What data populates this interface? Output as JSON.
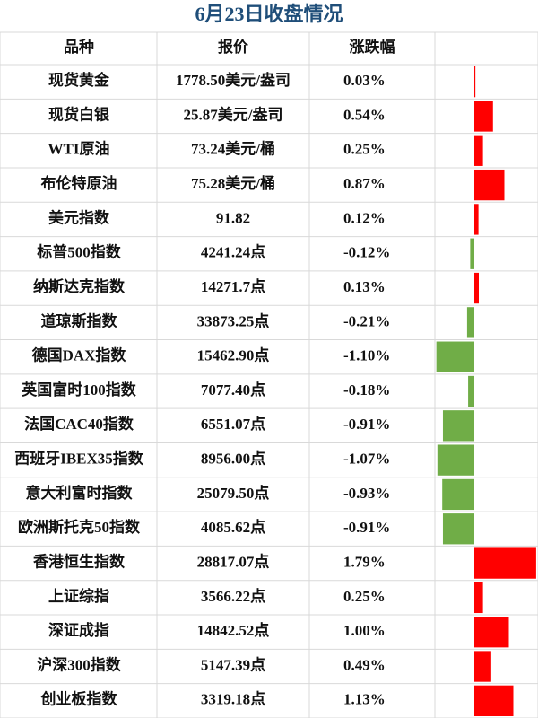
{
  "title": "6月23日收盘情况",
  "table": {
    "header": [
      "品种",
      "报价",
      "涨跌幅"
    ],
    "rows": [
      [
        "现货黄金",
        "1778.50美元/盎司",
        {
          "value": 0.03,
          "label": "0.03%"
        }
      ],
      [
        "现货白银",
        "25.87美元/盎司",
        {
          "value": 0.54,
          "label": "0.54%"
        }
      ],
      [
        "WTI原油",
        "73.24美元/桶",
        {
          "value": 0.25,
          "label": "0.25%"
        }
      ],
      [
        "布伦特原油",
        "75.28美元/桶",
        {
          "value": 0.87,
          "label": "0.87%"
        }
      ],
      [
        "美元指数",
        "91.82",
        {
          "value": 0.12,
          "label": "0.12%"
        }
      ],
      [
        "标普500指数",
        "4241.24点",
        {
          "value": -0.12,
          "label": "-0.12%"
        }
      ],
      [
        "纳斯达克指数",
        "14271.7点",
        {
          "value": 0.13,
          "label": "0.13%"
        }
      ],
      [
        "道琼斯指数",
        "33873.25点",
        {
          "value": -0.21,
          "label": "-0.21%"
        }
      ],
      [
        "德国DAX指数",
        "15462.90点",
        {
          "value": -1.1,
          "label": "-1.10%"
        }
      ],
      [
        "英国富时100指数",
        "7077.40点",
        {
          "value": -0.18,
          "label": "-0.18%"
        }
      ],
      [
        "法国CAC40指数",
        "6551.07点",
        {
          "value": -0.91,
          "label": "-0.91%"
        }
      ],
      [
        "西班牙IBEX35指数",
        "8956.00点",
        {
          "value": -1.07,
          "label": "-1.07%"
        }
      ],
      [
        "意大利富时指数",
        "25079.50点",
        {
          "value": -0.93,
          "label": "-0.93%"
        }
      ],
      [
        "欧洲斯托克50指数",
        "4085.62点",
        {
          "value": -0.91,
          "label": "-0.91%"
        }
      ],
      [
        "香港恒生指数",
        "28817.07点",
        {
          "value": 1.79,
          "label": "1.79%"
        }
      ],
      [
        "上证综指",
        "3566.22点",
        {
          "value": 0.25,
          "label": "0.25%"
        }
      ],
      [
        "深证成指",
        "14842.52点",
        {
          "value": 1.0,
          "label": "1.00%"
        }
      ],
      [
        "沪深300指数",
        "5147.39点",
        {
          "value": 0.49,
          "label": "0.49%"
        }
      ],
      [
        "创业板指数",
        "3319.18点",
        {
          "value": 1.13,
          "label": "1.13%"
        }
      ]
    ]
  }
}
